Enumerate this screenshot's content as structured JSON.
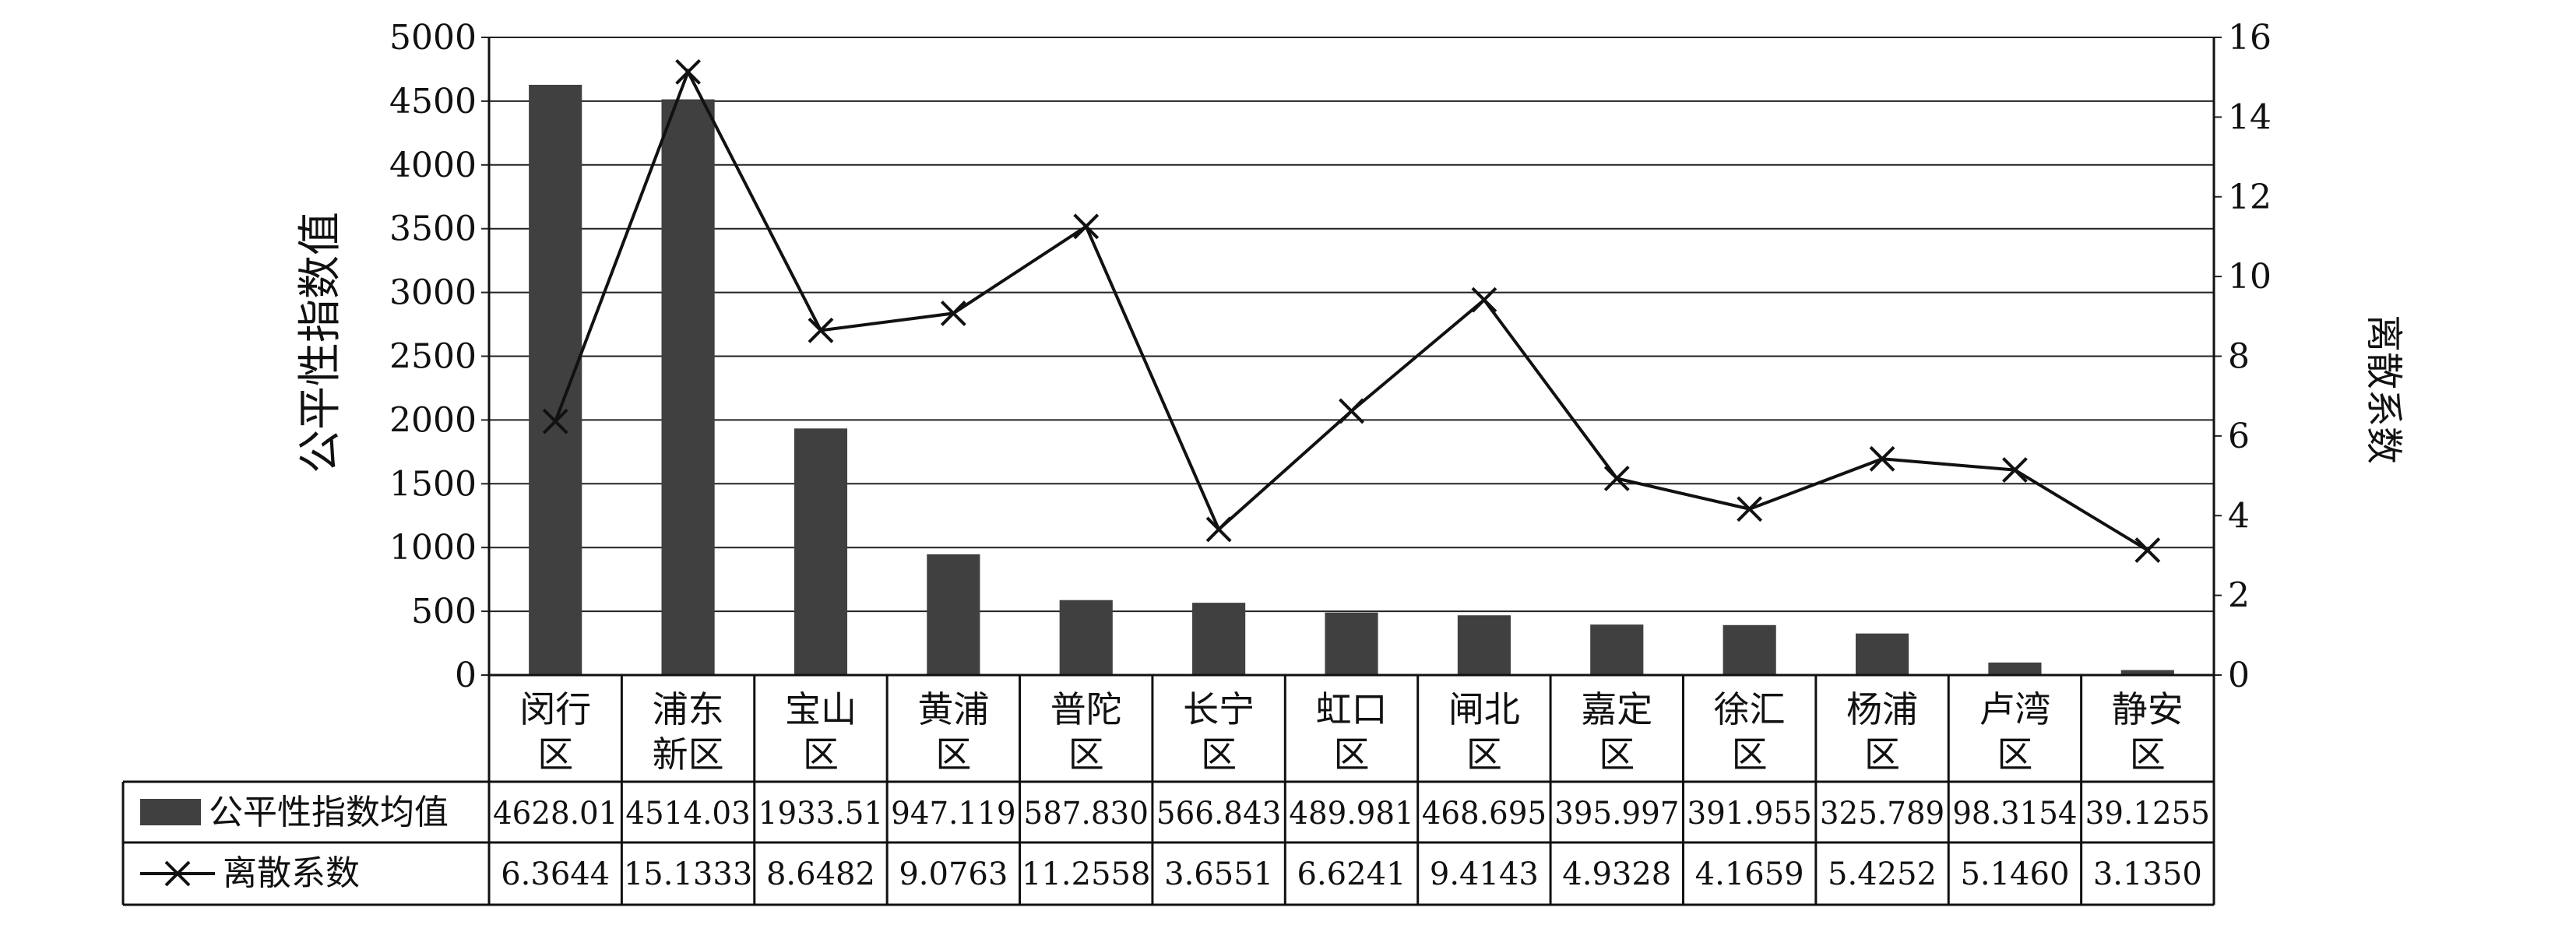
{
  "chart_data": {
    "type": "bar+line",
    "categories": [
      [
        "闵行",
        "区"
      ],
      [
        "浦东",
        "新区"
      ],
      [
        "宝山",
        "区"
      ],
      [
        "黄浦",
        "区"
      ],
      [
        "普陀",
        "区"
      ],
      [
        "长宁",
        "区"
      ],
      [
        "虹口",
        "区"
      ],
      [
        "闸北",
        "区"
      ],
      [
        "嘉定",
        "区"
      ],
      [
        "徐汇",
        "区"
      ],
      [
        "杨浦",
        "区"
      ],
      [
        "卢湾",
        "区"
      ],
      [
        "静安",
        "区"
      ]
    ],
    "ylabel": "公平性指数值",
    "y2label": "离散系数",
    "ylim": [
      0,
      5000
    ],
    "yticks": [
      "0",
      "500",
      "1000",
      "1500",
      "2000",
      "2500",
      "3000",
      "3500",
      "4000",
      "4500",
      "5000"
    ],
    "y2lim": [
      0,
      16
    ],
    "y2ticks": [
      "0",
      "2",
      "4",
      "6",
      "8",
      "10",
      "12",
      "14",
      "16"
    ],
    "grid": true,
    "legend": "data-table",
    "series": [
      {
        "name": "公平性指数均值",
        "type": "bar",
        "axis": "left",
        "color": "#404040",
        "values": [
          4628.01,
          4514.03,
          1933.51,
          947.119,
          587.83,
          566.843,
          489.981,
          468.695,
          395.997,
          391.955,
          325.789,
          98.3154,
          39.1255
        ],
        "labels": [
          "4628.01",
          "4514.03",
          "1933.51",
          "947.119",
          "587.830",
          "566.843",
          "489.981",
          "468.695",
          "395.997",
          "391.955",
          "325.789",
          "98.3154",
          "39.1255"
        ]
      },
      {
        "name": "离散系数",
        "type": "line",
        "marker": "x",
        "axis": "right",
        "color": "#111111",
        "values": [
          6.3644,
          15.1333,
          8.6482,
          9.0763,
          11.2558,
          3.6551,
          6.6241,
          9.4143,
          4.9328,
          4.1659,
          5.4252,
          5.146,
          3.135
        ],
        "labels": [
          "6.3644",
          "15.1333",
          "8.6482",
          "9.0763",
          "11.2558",
          "3.6551",
          "6.6241",
          "9.4143",
          "4.9328",
          "4.1659",
          "5.4252",
          "5.1460",
          "3.1350"
        ]
      }
    ]
  }
}
